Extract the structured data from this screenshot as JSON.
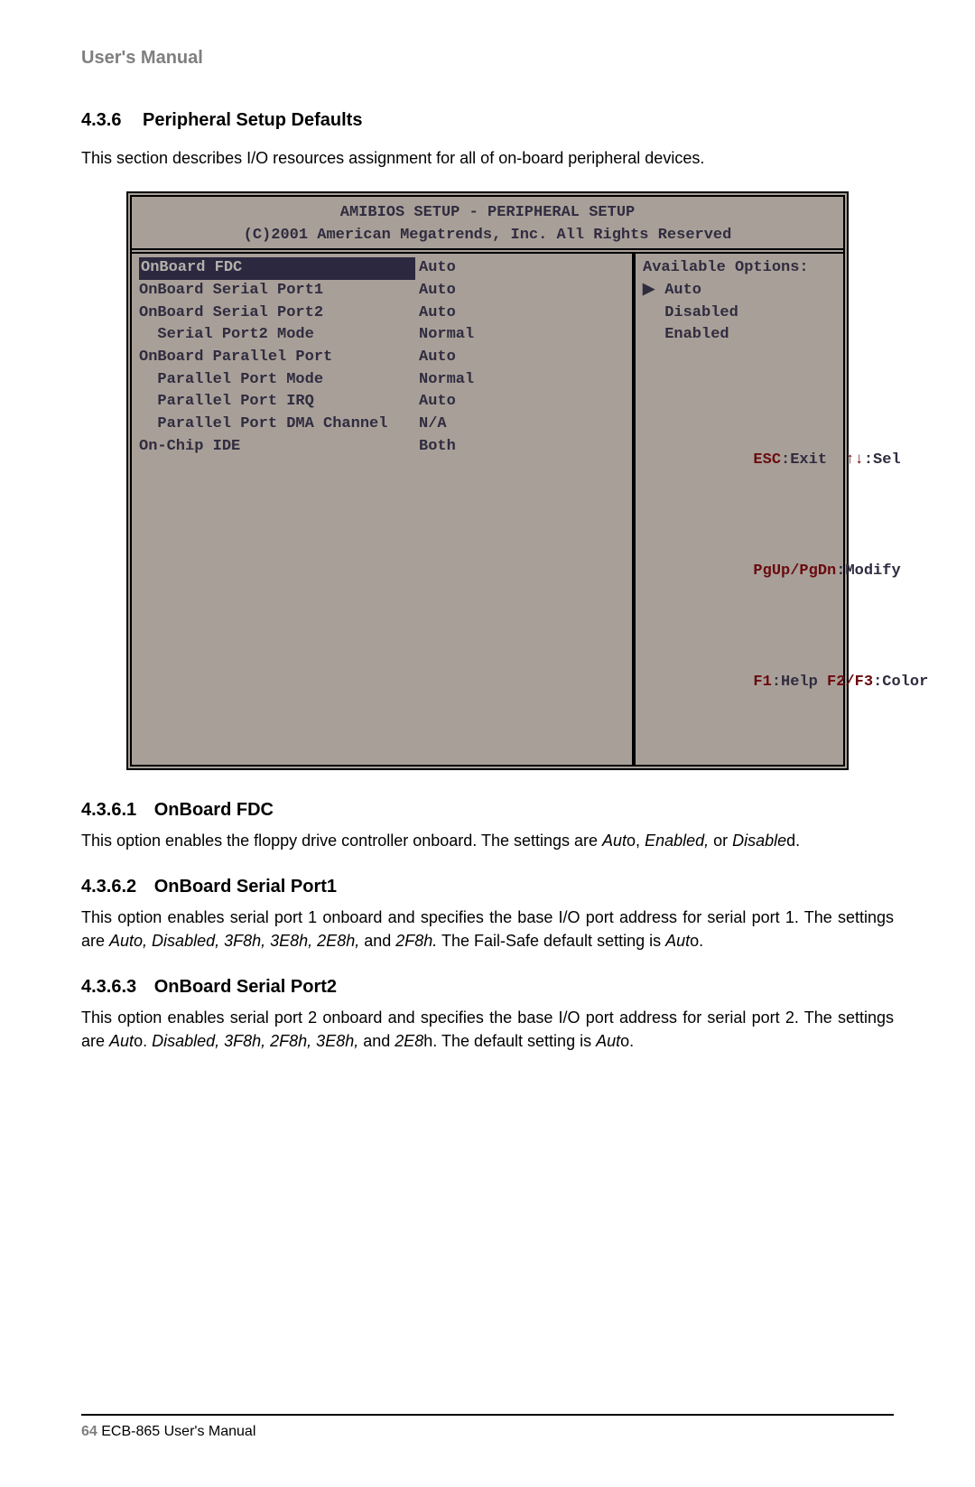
{
  "header": {
    "text": "User's Manual"
  },
  "section": {
    "number": "4.3.6",
    "title": "Peripheral Setup Defaults",
    "intro": "This section describes I/O resources assignment for all of on-board peripheral devices."
  },
  "bios": {
    "frame_bg": "#a8a098",
    "frame_fg": "#302c40",
    "highlight_bg": "#2b2840",
    "highlight_fg": "#b5b0a9",
    "key_color": "#6b0a0f",
    "title1": "AMIBIOS SETUP - PERIPHERAL SETUP",
    "title2": "(C)2001 American Megatrends, Inc. All Rights Reserved",
    "rows": [
      {
        "label": "OnBoard FDC",
        "value": "Auto",
        "highlighted": true,
        "indent": 0
      },
      {
        "label": "OnBoard Serial Port1",
        "value": "Auto",
        "highlighted": false,
        "indent": 0
      },
      {
        "label": "OnBoard Serial Port2",
        "value": "Auto",
        "highlighted": false,
        "indent": 0
      },
      {
        "label": "Serial Port2 Mode",
        "value": "Normal",
        "highlighted": false,
        "indent": 1
      },
      {
        "label": "OnBoard Parallel Port",
        "value": "Auto",
        "highlighted": false,
        "indent": 0
      },
      {
        "label": "Parallel Port Mode",
        "value": "Normal",
        "highlighted": false,
        "indent": 1
      },
      {
        "label": "Parallel Port IRQ",
        "value": "Auto",
        "highlighted": false,
        "indent": 1
      },
      {
        "label": "Parallel Port DMA Channel",
        "value": "N/A",
        "highlighted": false,
        "indent": 1
      },
      {
        "label": "On-Chip IDE",
        "value": "Both",
        "highlighted": false,
        "indent": 0
      }
    ],
    "options_title": "Available Options:",
    "options": [
      {
        "label": "Auto",
        "selected": true
      },
      {
        "label": "Disabled",
        "selected": false
      },
      {
        "label": "Enabled",
        "selected": false
      }
    ],
    "keys": {
      "esc": "ESC",
      "esc_txt": ":Exit",
      "arrows": "↑↓",
      "arrows_txt": ":Sel",
      "pg": "PgUp/PgDn",
      "pg_txt": ":Modify",
      "f1": "F1",
      "f1_txt": ":Help ",
      "f23": "F2/F3",
      "f23_txt": ":Color"
    }
  },
  "sub1": {
    "num": "4.3.6.1",
    "title": "OnBoard FDC",
    "p_a": "This option enables the floppy drive controller onboard. The settings are ",
    "i_a": "Aut",
    "p_b": "o, ",
    "i_b": "Enabled,",
    "p_c": " or ",
    "i_c": "Disable",
    "p_d": "d."
  },
  "sub2": {
    "num": "4.3.6.2",
    "title": "OnBoard Serial Port1",
    "p_a": "This option enables serial port 1 onboard and specifies the base I/O port address for serial port 1. The settings are ",
    "i_a": "Auto, Disabled, 3F8h, 3E8h, 2E8h,",
    "p_b": " and ",
    "i_b": "2F8h.",
    "p_c": " The Fail-Safe default setting is ",
    "i_c": "Aut",
    "p_d": "o."
  },
  "sub3": {
    "num": "4.3.6.3",
    "title": "OnBoard Serial Port2",
    "p_a": "This option enables serial port 2 onboard and specifies the base I/O port address for serial port 2. The settings are ",
    "i_a": "Aut",
    "p_b": "o. ",
    "i_b": "Disabled, 3F8h, 2F8h, 3E8h,",
    "p_c": " and ",
    "i_c": "2E8",
    "p_d": "h. The default setting is ",
    "i_d": "Aut",
    "p_e": "o."
  },
  "footer": {
    "page": "64",
    "text": " ECB-865 User's Manual"
  }
}
